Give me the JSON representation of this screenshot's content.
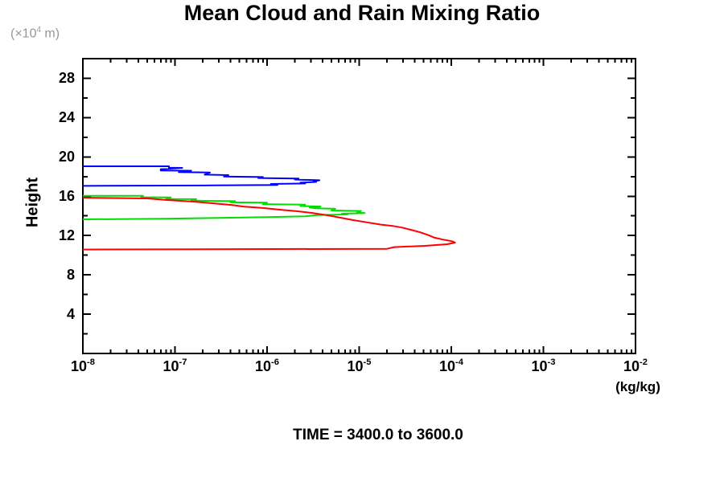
{
  "chart_data": {
    "type": "line",
    "title": "Mean Cloud and Rain Mixing Ratio",
    "caption": "TIME = 3400.0 to 3600.0",
    "ylabel": "Height",
    "y_unit_label": {
      "prefix": "(×10",
      "exp": "4",
      "suffix": " m)"
    },
    "x_unit_label": "(kg/kg)",
    "x_scale": "log",
    "x_range": [
      1e-08,
      0.01
    ],
    "y_range": [
      0,
      30
    ],
    "x_ticks": [
      {
        "base": "10",
        "exp": "-8",
        "value": 1e-08
      },
      {
        "base": "10",
        "exp": "-7",
        "value": 1e-07
      },
      {
        "base": "10",
        "exp": "-6",
        "value": 1e-06
      },
      {
        "base": "10",
        "exp": "-5",
        "value": 1e-05
      },
      {
        "base": "10",
        "exp": "-4",
        "value": 0.0001
      },
      {
        "base": "10",
        "exp": "-3",
        "value": 0.001
      },
      {
        "base": "10",
        "exp": "-2",
        "value": 0.01
      }
    ],
    "y_major_ticks": [
      4,
      8,
      12,
      16,
      20,
      24,
      28
    ],
    "y_minor_ticks": [
      2,
      6,
      10,
      14,
      18,
      22,
      26
    ],
    "grid": false,
    "legend": "none",
    "frame_color": "#000000",
    "unit_label_color": "#979797",
    "series": [
      {
        "name": "blue",
        "color": "#0000ff",
        "points": [
          [
            1e-08,
            19.05
          ],
          [
            8.6e-08,
            19.05
          ],
          [
            8.6e-08,
            18.9
          ],
          [
            1.2e-07,
            18.88
          ],
          [
            7e-08,
            18.75
          ],
          [
            7e-08,
            18.62
          ],
          [
            1.5e-07,
            18.6
          ],
          [
            1.1e-07,
            18.45
          ],
          [
            2.4e-07,
            18.42
          ],
          [
            2.2e-07,
            18.28
          ],
          [
            2.1e-07,
            18.2
          ],
          [
            3.8e-07,
            18.15
          ],
          [
            3.4e-07,
            18.0
          ],
          [
            9e-07,
            17.95
          ],
          [
            8e-07,
            17.85
          ],
          [
            2.2e-06,
            17.8
          ],
          [
            2e-06,
            17.7
          ],
          [
            3.7e-06,
            17.62
          ],
          [
            3.2e-06,
            17.5
          ],
          [
            3.4e-06,
            17.45
          ],
          [
            2.3e-06,
            17.38
          ],
          [
            2.6e-06,
            17.3
          ],
          [
            1.1e-06,
            17.25
          ],
          [
            1.3e-06,
            17.15
          ],
          [
            2.5e-07,
            17.1
          ],
          [
            1e-08,
            17.05
          ]
        ]
      },
      {
        "name": "green",
        "color": "#00dd00",
        "points": [
          [
            1e-08,
            16.05
          ],
          [
            4.5e-08,
            16.05
          ],
          [
            4.3e-08,
            15.9
          ],
          [
            9e-08,
            15.88
          ],
          [
            8e-08,
            15.72
          ],
          [
            1.7e-07,
            15.7
          ],
          [
            1.5e-07,
            15.55
          ],
          [
            4.5e-07,
            15.5
          ],
          [
            4e-07,
            15.38
          ],
          [
            1e-06,
            15.35
          ],
          [
            9e-07,
            15.2
          ],
          [
            2.6e-06,
            15.15
          ],
          [
            2.3e-06,
            15.0
          ],
          [
            3.8e-06,
            14.95
          ],
          [
            2.9e-06,
            14.85
          ],
          [
            3.4e-06,
            14.78
          ],
          [
            5.5e-06,
            14.72
          ],
          [
            5e-06,
            14.55
          ],
          [
            1.05e-05,
            14.5
          ],
          [
            9.5e-06,
            14.35
          ],
          [
            1.15e-05,
            14.28
          ],
          [
            6.5e-06,
            14.22
          ],
          [
            7.5e-06,
            14.15
          ],
          [
            3.5e-06,
            14.08
          ],
          [
            2.6e-06,
            13.95
          ],
          [
            1e-06,
            13.88
          ],
          [
            3e-07,
            13.8
          ],
          [
            8e-08,
            13.72
          ],
          [
            1e-08,
            13.65
          ]
        ]
      },
      {
        "name": "red",
        "color": "#ff0000",
        "points": [
          [
            1e-08,
            15.85
          ],
          [
            5e-08,
            15.78
          ],
          [
            8e-08,
            15.62
          ],
          [
            1.6e-07,
            15.45
          ],
          [
            2.6e-07,
            15.28
          ],
          [
            4.2e-07,
            15.1
          ],
          [
            5.5e-07,
            14.95
          ],
          [
            9e-07,
            14.8
          ],
          [
            1.4e-06,
            14.62
          ],
          [
            2.1e-06,
            14.48
          ],
          [
            3.1e-06,
            14.3
          ],
          [
            4.6e-06,
            14.05
          ],
          [
            6.2e-06,
            13.82
          ],
          [
            8.5e-06,
            13.58
          ],
          [
            1.2e-05,
            13.35
          ],
          [
            1.7e-05,
            13.12
          ],
          [
            2.3e-05,
            12.98
          ],
          [
            2.9e-05,
            12.82
          ],
          [
            3.6e-05,
            12.6
          ],
          [
            4.6e-05,
            12.33
          ],
          [
            5.6e-05,
            12.05
          ],
          [
            6.6e-05,
            11.78
          ],
          [
            8.2e-05,
            11.58
          ],
          [
            0.000102,
            11.42
          ],
          [
            0.00011,
            11.28
          ],
          [
            9e-05,
            11.12
          ],
          [
            5.2e-05,
            10.95
          ],
          [
            2.4e-05,
            10.82
          ],
          [
            2e-05,
            10.65
          ],
          [
            1e-08,
            10.58
          ]
        ]
      }
    ]
  }
}
